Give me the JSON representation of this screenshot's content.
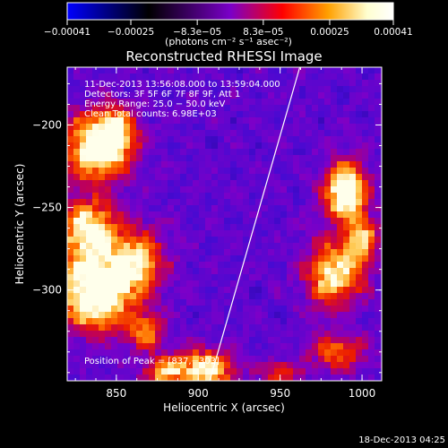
{
  "chart_data": {
    "type": "heatmap",
    "title": "Reconstructed RHESSI Image",
    "xlabel": "Heliocentric X (arcsec)",
    "ylabel": "Heliocentric Y (arcsec)",
    "xlim": [
      820,
      1012
    ],
    "ylim": [
      -355,
      -165
    ],
    "x_ticks": [
      {
        "value": 850,
        "label": "850"
      },
      {
        "value": 900,
        "label": "900"
      },
      {
        "value": 950,
        "label": "950"
      },
      {
        "value": 1000,
        "label": "1000"
      }
    ],
    "y_ticks": [
      {
        "value": -200,
        "label": "−200"
      },
      {
        "value": -250,
        "label": "−250"
      },
      {
        "value": -300,
        "label": "−300"
      }
    ],
    "colorbar": {
      "range": [
        -0.00041,
        0.00041
      ],
      "unit": "(photons cm⁻² s⁻¹ asec⁻²)",
      "ticks": [
        {
          "value": -0.00041,
          "label": "−0.00041"
        },
        {
          "value": -0.00025,
          "label": "−0.00025"
        },
        {
          "value": -8.3e-05,
          "label": "−8.3e−05"
        },
        {
          "value": 8.3e-05,
          "label": "8.3e−05"
        },
        {
          "value": 0.00025,
          "label": "0.00025"
        },
        {
          "value": 0.00041,
          "label": "0.00041"
        }
      ],
      "colors": [
        "#0000ff",
        "#000000",
        "#7a00c8",
        "#ff0000",
        "#ffa000",
        "#ffffd0",
        "#ffffff"
      ]
    },
    "annotations": [
      "11-Dec-2013 13:56:08.000 to 13:59:04.000",
      "Detectors: 3F 5F 6F 7F 8F 9F, Att 1",
      "Energy Range: 25.0 − 50.0 keV",
      "Clean     Total counts: 6.98E+03"
    ],
    "peak_label": "Position of Peak = [837,−303]",
    "limb_line": [
      [
        907,
        -355
      ],
      [
        962,
        -165
      ]
    ],
    "hot_regions": [
      {
        "x": 838,
        "y": -213,
        "sx": 14,
        "sy": 14,
        "amp": 0.85
      },
      {
        "x": 850,
        "y": -205,
        "sx": 8,
        "sy": 10,
        "amp": 0.5
      },
      {
        "x": 833,
        "y": -262,
        "sx": 12,
        "sy": 12,
        "amp": 0.75
      },
      {
        "x": 837,
        "y": -300,
        "sx": 15,
        "sy": 16,
        "amp": 1.0
      },
      {
        "x": 862,
        "y": -283,
        "sx": 12,
        "sy": 14,
        "amp": 0.6
      },
      {
        "x": 868,
        "y": -325,
        "sx": 8,
        "sy": 8,
        "amp": 0.45
      },
      {
        "x": 903,
        "y": -348,
        "sx": 13,
        "sy": 8,
        "amp": 0.75
      },
      {
        "x": 878,
        "y": -350,
        "sx": 8,
        "sy": 6,
        "amp": 0.5
      },
      {
        "x": 990,
        "y": -240,
        "sx": 9,
        "sy": 12,
        "amp": 0.95
      },
      {
        "x": 983,
        "y": -290,
        "sx": 12,
        "sy": 14,
        "amp": 0.7
      },
      {
        "x": 1000,
        "y": -270,
        "sx": 7,
        "sy": 10,
        "amp": 0.55
      },
      {
        "x": 985,
        "y": -338,
        "sx": 12,
        "sy": 8,
        "amp": 0.45
      },
      {
        "x": 950,
        "y": -350,
        "sx": 8,
        "sy": 5,
        "amp": 0.4
      }
    ]
  },
  "footer_date": "18-Dec-2013 04:25"
}
